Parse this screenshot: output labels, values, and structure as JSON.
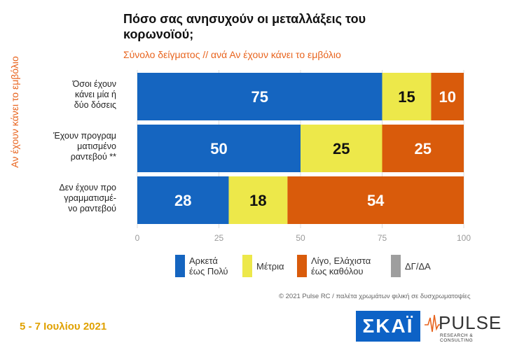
{
  "title": "Πόσο σας ανησυχούν οι μεταλλάξεις του κορωνοϊού;",
  "subtitle": "Σύνολο δείγματος // ανά Αν έχουν κάνει το εμβόλιο",
  "side_label": "Αν έχουν κάνει το εμβόλιο",
  "chart_data": {
    "type": "bar",
    "orientation": "horizontal",
    "stacked": true,
    "categories": [
      [
        "Όσοι έχουν",
        "κάνει μία ή",
        "δύο δόσεις"
      ],
      [
        "Έχουν προγραμ",
        "ματισμένο",
        "ραντεβού **"
      ],
      [
        "Δεν έχουν προ",
        "γραμματισμέ-",
        "νο ραντεβού"
      ]
    ],
    "series": [
      {
        "name": "Αρκετά έως Πολύ",
        "color": "#1565c0",
        "label_color": "#ffffff",
        "values": [
          75,
          50,
          28
        ]
      },
      {
        "name": "Μέτρια",
        "color": "#ede84a",
        "label_color": "#111111",
        "values": [
          15,
          25,
          18
        ]
      },
      {
        "name": "Λίγο, Ελάχιστα έως καθόλου",
        "color": "#d95b0b",
        "label_color": "#ffffff",
        "values": [
          10,
          25,
          54
        ]
      },
      {
        "name": "ΔΓ/ΔΑ",
        "color": "#9e9e9e",
        "label_color": "#ffffff",
        "values": [
          0,
          0,
          0
        ]
      }
    ],
    "xlim": [
      0,
      100
    ],
    "xticks": [
      "0",
      "25",
      "50",
      "75",
      "100"
    ],
    "legend_position": "bottom"
  },
  "legend": [
    {
      "lines": [
        "Αρκετά",
        "έως Πολύ"
      ],
      "color": "#1565c0"
    },
    {
      "lines": [
        "Μέτρια"
      ],
      "color": "#ede84a"
    },
    {
      "lines": [
        "Λίγο, Ελάχιστα",
        "έως καθόλου"
      ],
      "color": "#d95b0b"
    },
    {
      "lines": [
        "ΔΓ/ΔΑ"
      ],
      "color": "#9e9e9e"
    }
  ],
  "footer_note": "© 2021 Pulse RC  /  παλέτα χρωμάτων φιλική σε δυσχρωματοψίες",
  "date": "5 - 7 Ιουλίου 2021",
  "logos": {
    "skai": "ΣΚΑΪ",
    "pulse": "PULSE",
    "pulse_sub": "RESEARCH & CONSULTING"
  }
}
